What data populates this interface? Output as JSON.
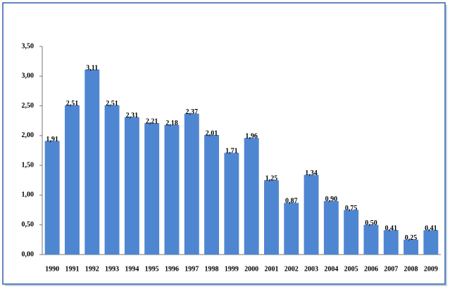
{
  "chart_data": {
    "type": "bar",
    "categories": [
      "1990",
      "1991",
      "1992",
      "1993",
      "1994",
      "1995",
      "1996",
      "1997",
      "1998",
      "1999",
      "2000",
      "2001",
      "2002",
      "2003",
      "2004",
      "2005",
      "2006",
      "2007",
      "2008",
      "2009"
    ],
    "values": [
      1.91,
      2.51,
      3.11,
      2.51,
      2.31,
      2.21,
      2.18,
      2.37,
      2.01,
      1.71,
      1.96,
      1.25,
      0.87,
      1.34,
      0.9,
      0.75,
      0.5,
      0.41,
      0.25,
      0.41
    ],
    "value_labels": [
      "1,91",
      "2,51",
      "3,11",
      "2,51",
      "2,31",
      "2,21",
      "2,18",
      "2,37",
      "2,01",
      "1,71",
      "1,96",
      "1,25",
      "0,87",
      "1,34",
      "0,90",
      "0,75",
      "0,50",
      "0,41",
      "0,25",
      "0,41"
    ],
    "color": "#4f86d2",
    "ylim": [
      0,
      3.5
    ],
    "yticks": [
      {
        "value": 0,
        "label": "0,00"
      },
      {
        "value": 0.5,
        "label": "0,50"
      },
      {
        "value": 1,
        "label": "1,00"
      },
      {
        "value": 1.5,
        "label": "1,50"
      },
      {
        "value": 2,
        "label": "2,00"
      },
      {
        "value": 2.5,
        "label": "2,50"
      },
      {
        "value": 3,
        "label": "3,00"
      },
      {
        "value": 3.5,
        "label": "3,50"
      }
    ],
    "grid": false
  }
}
